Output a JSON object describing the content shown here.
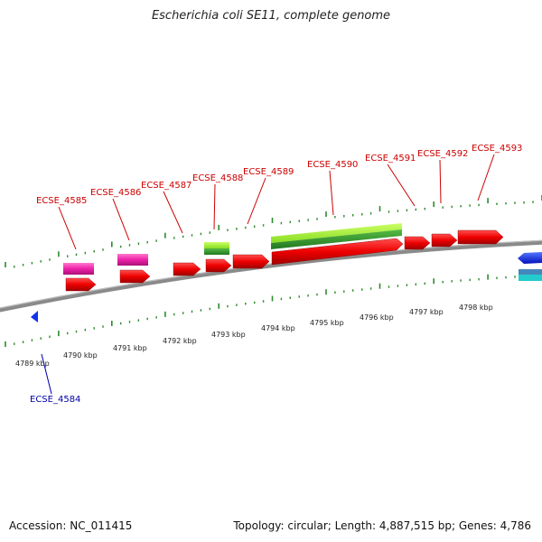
{
  "title": "Escherichia coli SE11, complete genome",
  "footer": {
    "accession": "Accession: NC_011415",
    "summary": "Topology: circular; Length: 4,887,515 bp; Genes: 4,786"
  },
  "colors": {
    "backbone": "#8a8a8a",
    "tick": "#2e8b2e",
    "gene_red": "#ee0000",
    "gene_pink": "#ee22aa",
    "gene_lime": "#99ee33",
    "gene_green": "#339933",
    "gene_blue": "#1133ee",
    "gene_cyan": "#22cccc",
    "gene_steel": "#4488bb",
    "label_red": "#cc0000",
    "label_blue": "#0000aa"
  },
  "ruler_labels": [
    "4789 kbp",
    "4790 kbp",
    "4791 kbp",
    "4792 kbp",
    "4793 kbp",
    "4794 kbp",
    "4795 kbp",
    "4796 kbp",
    "4797 kbp",
    "4798 kbp"
  ],
  "gene_labels_top": [
    "ECSE_4585",
    "ECSE_4586",
    "ECSE_4587",
    "ECSE_4588",
    "ECSE_4589",
    "ECSE_4590",
    "ECSE_4591",
    "ECSE_4592",
    "ECSE_4593"
  ],
  "gene_labels_bottom": [
    "ECSE_4584"
  ]
}
